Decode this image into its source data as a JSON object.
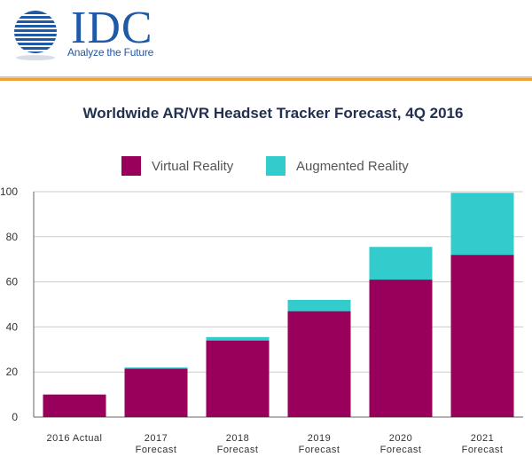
{
  "header": {
    "logo_text": "IDC",
    "tagline": "Analyze the Future",
    "brand_color": "#1f5aa8",
    "accent_rule_color": "#f0a030",
    "logo_icon": "globe-icon"
  },
  "chart_data": {
    "type": "bar",
    "stacked": true,
    "title": "Worldwide AR/VR Headset Tracker Forecast, 4Q 2016",
    "categories": [
      [
        "2016 Actual"
      ],
      [
        "2017",
        "Forecast"
      ],
      [
        "2018",
        "Forecast"
      ],
      [
        "2019",
        "Forecast"
      ],
      [
        "2020",
        "Forecast"
      ],
      [
        "2021",
        "Forecast"
      ]
    ],
    "series": [
      {
        "name": "Virtual Reality",
        "color": "#99005b",
        "values": [
          10,
          21.5,
          34,
          47,
          61,
          72
        ]
      },
      {
        "name": "Augmented Reality",
        "color": "#33cccc",
        "values": [
          0,
          0.5,
          1.5,
          5,
          14.5,
          27.5
        ]
      }
    ],
    "ylim": [
      0,
      100
    ],
    "yticks": [
      "0",
      "20",
      "40",
      "60",
      "80",
      "100"
    ],
    "grid": true,
    "legend_position": "top"
  }
}
